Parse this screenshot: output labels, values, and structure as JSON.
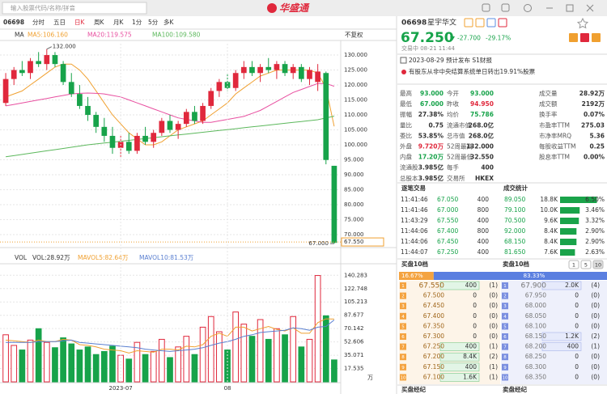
{
  "top_bar": {
    "search_placeholder": "输入股票代码/名称/拼音",
    "logo": "华盛通"
  },
  "toolbar": {
    "code": "06698",
    "tabs": [
      "分时",
      "五日",
      "日K",
      "周K",
      "月K",
      "1分",
      "5分",
      "多K"
    ]
  },
  "chart_data": [
    {
      "type": "candlestick",
      "legend_title": "MA",
      "adjust": "不复权",
      "up_color": "#e0283c",
      "down_color": "#17a34a",
      "open": [
        114,
        122,
        125,
        124,
        128,
        127,
        130,
        127,
        121,
        117,
        113,
        110,
        106,
        103,
        99,
        101,
        98,
        103,
        101,
        104,
        108,
        105,
        107,
        111,
        108,
        113,
        118,
        121,
        119,
        124,
        126,
        124,
        126,
        125,
        127,
        124,
        126,
        122,
        121,
        124,
        93
      ],
      "high": [
        124,
        126,
        128,
        129,
        131,
        132,
        131,
        128,
        124,
        120,
        116,
        111,
        109,
        106,
        103,
        104,
        104,
        106,
        105,
        109,
        110,
        108,
        112,
        113,
        114,
        119,
        122,
        124,
        125,
        128,
        128,
        127,
        129,
        128,
        128,
        127,
        127,
        126,
        127,
        124.5,
        93
      ],
      "low": [
        113,
        120,
        123,
        122,
        126,
        125,
        126,
        120,
        116,
        112,
        108,
        104,
        101,
        97,
        96,
        97,
        97,
        100,
        99,
        103,
        104,
        102,
        106,
        107,
        107,
        112,
        116,
        118,
        118,
        122,
        123,
        121,
        124,
        122,
        123,
        122,
        121,
        120,
        118,
        93.5,
        67
      ],
      "close": [
        122,
        125,
        124,
        128,
        127,
        130,
        127,
        121,
        117,
        113,
        110,
        106,
        103,
        99,
        101,
        98,
        103,
        101,
        104,
        108,
        105,
        107,
        111,
        108,
        113,
        118,
        121,
        119,
        124,
        126,
        124,
        126,
        125,
        127,
        124,
        126,
        122,
        125,
        124.5,
        94.95,
        67.25
      ],
      "series": [
        {
          "name": "MA5:106.160",
          "color": "#f0a030",
          "values": [
            116,
            117,
            118,
            120,
            122,
            124,
            126,
            127,
            127,
            125,
            122,
            118,
            114,
            110,
            107,
            104,
            102,
            100,
            100,
            101,
            103,
            105,
            106,
            107,
            108,
            110,
            112,
            114,
            117,
            119,
            121,
            123,
            124,
            125,
            125,
            125,
            125,
            125,
            124,
            119,
            106.16
          ]
        },
        {
          "name": "MA20:119.575",
          "color": "#e84fa0",
          "values": [
            113,
            113.5,
            114,
            114.5,
            115,
            115.5,
            116,
            116.5,
            117,
            117.2,
            117.3,
            117.2,
            117,
            116.5,
            116,
            115,
            114,
            113,
            112,
            111,
            110,
            109,
            108.5,
            108,
            107.5,
            107.5,
            108,
            108.5,
            109,
            109.5,
            110.5,
            111.5,
            113,
            114.5,
            116,
            117.5,
            118.5,
            119.5,
            120.5,
            120.5,
            119.575
          ]
        },
        {
          "name": "MA100:109.580",
          "color": "#5cb85c",
          "values": [
            96,
            96.4,
            96.8,
            97.2,
            97.6,
            98,
            98.4,
            98.8,
            99.2,
            99.6,
            100,
            100.3,
            100.6,
            100.9,
            101.2,
            101.5,
            101.8,
            102.1,
            102.4,
            102.7,
            103,
            103.3,
            103.6,
            103.9,
            104.2,
            104.5,
            104.8,
            105.1,
            105.4,
            105.7,
            106,
            106.3,
            106.6,
            106.9,
            107.2,
            107.5,
            107.8,
            108.1,
            108.4,
            109,
            109.58
          ]
        }
      ],
      "ylim": [
        67.3,
        133.8
      ],
      "yticks": [
        {
          "value": 70,
          "label": "70.000"
        },
        {
          "value": 75,
          "label": "75.000"
        },
        {
          "value": 80,
          "label": "80.000"
        },
        {
          "value": 85,
          "label": "85.000"
        },
        {
          "value": 90,
          "label": "90.000"
        },
        {
          "value": 95,
          "label": "95.000"
        },
        {
          "value": 100,
          "label": "100.000"
        },
        {
          "value": 105,
          "label": "105.000"
        },
        {
          "value": 110,
          "label": "110.000"
        },
        {
          "value": 115,
          "label": "115.000"
        },
        {
          "value": 120,
          "label": "120.000"
        },
        {
          "value": 125,
          "label": "125.000"
        },
        {
          "value": 130,
          "label": "130.000"
        }
      ],
      "grid": true,
      "high_label": {
        "value": 132,
        "label": "132.000"
      },
      "low_label": {
        "value": 67,
        "label": "67.000"
      },
      "last_price": {
        "value": 67.55,
        "label": "67.550"
      }
    },
    {
      "type": "bar",
      "title": "VOL",
      "unit": "万",
      "categories": [
        null,
        null,
        null,
        null,
        null,
        null,
        null,
        null,
        null,
        null,
        null,
        null,
        null,
        null,
        "2023-07",
        null,
        null,
        null,
        null,
        null,
        null,
        null,
        null,
        null,
        null,
        null,
        null,
        "08",
        null,
        null,
        null,
        null,
        null,
        null,
        null,
        null,
        null,
        null,
        null,
        null,
        null
      ],
      "series": [
        {
          "name": "VOL:28.92万",
          "color": "#333333",
          "values": [
            62,
            48,
            42,
            55,
            70,
            52,
            45,
            58,
            50,
            42,
            46,
            36,
            40,
            47,
            35,
            30,
            52,
            36,
            40,
            56,
            32,
            46,
            60,
            36,
            72,
            86,
            66,
            42,
            92,
            76,
            60,
            82,
            56,
            70,
            62,
            86,
            46,
            56,
            140,
            87,
            28.92
          ]
        },
        {
          "name": "MAVOL5:82.64万",
          "color": "#f0a030",
          "values": [
            55,
            54,
            53,
            52,
            55,
            53,
            53,
            56,
            55,
            49,
            48,
            46,
            43,
            42,
            41,
            38,
            41,
            40,
            39,
            43,
            43,
            42,
            47,
            46,
            49,
            60,
            64,
            60,
            72,
            72,
            67,
            70,
            73,
            69,
            67,
            71,
            64,
            64,
            78,
            83,
            82.64
          ]
        },
        {
          "name": "MAVOL10:81.53万",
          "color": "#5a7fd0",
          "values": [
            52,
            52,
            52,
            52,
            53,
            53,
            53,
            54,
            55,
            52,
            51,
            50,
            49,
            48,
            47,
            46,
            45,
            43,
            42,
            41,
            40,
            41,
            42,
            43,
            45,
            48,
            51,
            53,
            56,
            60,
            62,
            65,
            66,
            67,
            68,
            71,
            70,
            68,
            72,
            73,
            81.53
          ]
        }
      ],
      "ylim": [
        0,
        147
      ],
      "yticks": [
        17.535,
        35.071,
        52.606,
        70.142,
        87.677,
        105.213,
        122.748,
        140.283
      ],
      "grid": true
    }
  ],
  "quote": {
    "code": "06698",
    "name": "星宇华文",
    "price": "67.250",
    "change": "-27.700",
    "change_pct": "-29.17%",
    "status": "交易中 08-21 11:44",
    "event": "2023-08-29 预计发布 S1财报",
    "notice": "有股东从非中央结算系统单日转出19.91%股票",
    "stats": [
      [
        "最高",
        "93.000",
        "今开",
        "93.000",
        "成交量",
        "28.92万"
      ],
      [
        "最低",
        "67.000",
        "昨收",
        "94.950",
        "成交额",
        "2192万"
      ],
      [
        "振幅",
        "27.38%",
        "均价",
        "75.786",
        "换手率",
        "0.07%"
      ],
      [
        "量比",
        "0.75",
        "流通市值",
        "268.0亿",
        "市盈率TTM",
        "275.03"
      ],
      [
        "委比",
        "53.85%",
        "总市值",
        "268.0亿",
        "市净率MRQ",
        "5.36"
      ],
      [
        "外盘",
        "9.720万",
        "52周最高",
        "132.000",
        "每股收益TTM",
        "0.25"
      ],
      [
        "内盘",
        "17.20万",
        "52周最低",
        "32.550",
        "股息率TTM",
        "0.00%"
      ],
      [
        "流通股",
        "3.985亿",
        "每手",
        "400"
      ],
      [
        "总股本",
        "3.985亿",
        "交易所",
        "HKEX"
      ]
    ],
    "trade_tabs": [
      "逐笔交易",
      "成交统计"
    ],
    "trades": [
      {
        "time": "11:41:46",
        "price": "67.050",
        "qty": "400",
        "stat_price": "89.050",
        "stat_volume": "18.8K",
        "share": {
          "value": 6.5,
          "label": "6.50%"
        }
      },
      {
        "time": "11:41:46",
        "price": "67.000",
        "qty": "800",
        "stat_price": "79.100",
        "stat_volume": "10.0K",
        "share": {
          "value": 3.46,
          "label": "3.46%"
        }
      },
      {
        "time": "11:43:29",
        "price": "67.550",
        "qty": "400",
        "stat_price": "70.500",
        "stat_volume": "9.6K",
        "share": {
          "value": 3.32,
          "label": "3.32%"
        }
      },
      {
        "time": "11:44:06",
        "price": "67.400",
        "qty": "800",
        "stat_price": "92.000",
        "stat_volume": "8.4K",
        "share": {
          "value": 2.9,
          "label": "2.90%"
        }
      },
      {
        "time": "11:44:06",
        "price": "67.450",
        "qty": "400",
        "stat_price": "68.150",
        "stat_volume": "8.4K",
        "share": {
          "value": 2.9,
          "label": "2.90%"
        }
      },
      {
        "time": "11:44:07",
        "price": "67.250",
        "qty": "400",
        "stat_price": "81.650",
        "stat_volume": "7.6K",
        "share": {
          "value": 2.63,
          "label": "2.63%"
        }
      }
    ],
    "book_tabs": {
      "buy": "买盘10档",
      "sell": "卖盘10档",
      "depth": [
        "1",
        "5",
        "10"
      ]
    },
    "ratio": {
      "buy": {
        "value": 16.67,
        "label": "16.67%"
      },
      "sell": {
        "value": 83.33,
        "label": "83.33%"
      }
    },
    "bids": [
      [
        "1",
        "67.550",
        "400",
        "(1)"
      ],
      [
        "2",
        "67.500",
        "0",
        "(0)"
      ],
      [
        "3",
        "67.450",
        "0",
        "(0)"
      ],
      [
        "4",
        "67.400",
        "0",
        "(0)"
      ],
      [
        "5",
        "67.350",
        "0",
        "(0)"
      ],
      [
        "6",
        "67.300",
        "0",
        "(0)"
      ],
      [
        "7",
        "67.250",
        "400",
        "(1)"
      ],
      [
        "8",
        "67.200",
        "8.4K",
        "(2)"
      ],
      [
        "9",
        "67.150",
        "400",
        "(1)"
      ],
      [
        "10",
        "67.100",
        "1.6K",
        "(1)"
      ]
    ],
    "asks": [
      [
        "1",
        "67.900",
        "2.0K",
        "(4)"
      ],
      [
        "2",
        "67.950",
        "0",
        "(0)"
      ],
      [
        "3",
        "68.000",
        "0",
        "(0)"
      ],
      [
        "4",
        "68.050",
        "0",
        "(0)"
      ],
      [
        "5",
        "68.100",
        "0",
        "(0)"
      ],
      [
        "6",
        "68.150",
        "1.2K",
        "(2)"
      ],
      [
        "7",
        "68.200",
        "400",
        "(1)"
      ],
      [
        "8",
        "68.250",
        "0",
        "(0)"
      ],
      [
        "9",
        "68.300",
        "0",
        "(0)"
      ],
      [
        "10",
        "68.350",
        "0",
        "(0)"
      ]
    ],
    "brokers": [
      "买盘经纪",
      "卖盘经纪"
    ]
  }
}
